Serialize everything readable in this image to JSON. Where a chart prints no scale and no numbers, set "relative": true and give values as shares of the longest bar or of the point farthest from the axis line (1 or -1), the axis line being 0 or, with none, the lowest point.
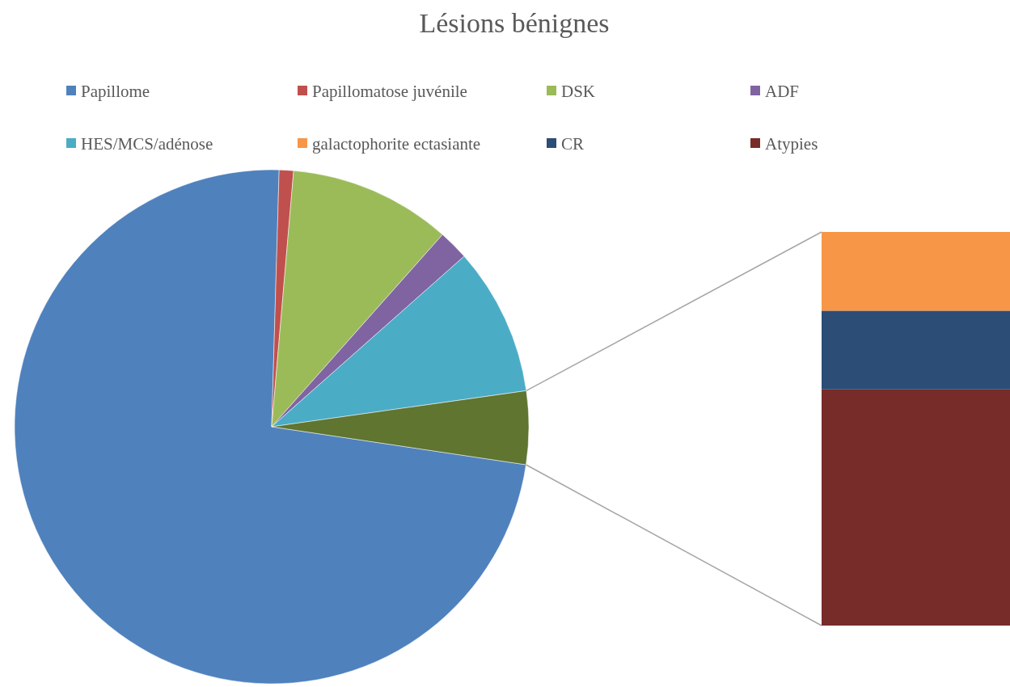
{
  "chart_data": [
    {
      "type": "pie",
      "title": "Lésions bénignes",
      "legend": "top",
      "categories": [
        "Papillome",
        "Papillomatose juvénile",
        "DSK",
        "ADF",
        "HES/MCS/adénose",
        null
      ],
      "values": [
        73.1,
        0.9,
        10.2,
        1.9,
        9.3,
        4.6
      ],
      "colors": [
        "#4f81bd",
        "#c0504d",
        "#9bbb59",
        "#8064a2",
        "#4bacc6",
        "#5f7530"
      ]
    },
    {
      "type": "bar",
      "stacked": true,
      "relative": true,
      "legend": "top",
      "categories": [
        null
      ],
      "series": [
        {
          "name": "Atypies",
          "color": "#772c2a",
          "values": [
            0.6
          ]
        },
        {
          "name": "CR",
          "color": "#2c4d75",
          "values": [
            0.2
          ]
        },
        {
          "name": "galactophorite ectasiante",
          "color": "#f79646",
          "values": [
            0.2
          ]
        }
      ]
    }
  ]
}
